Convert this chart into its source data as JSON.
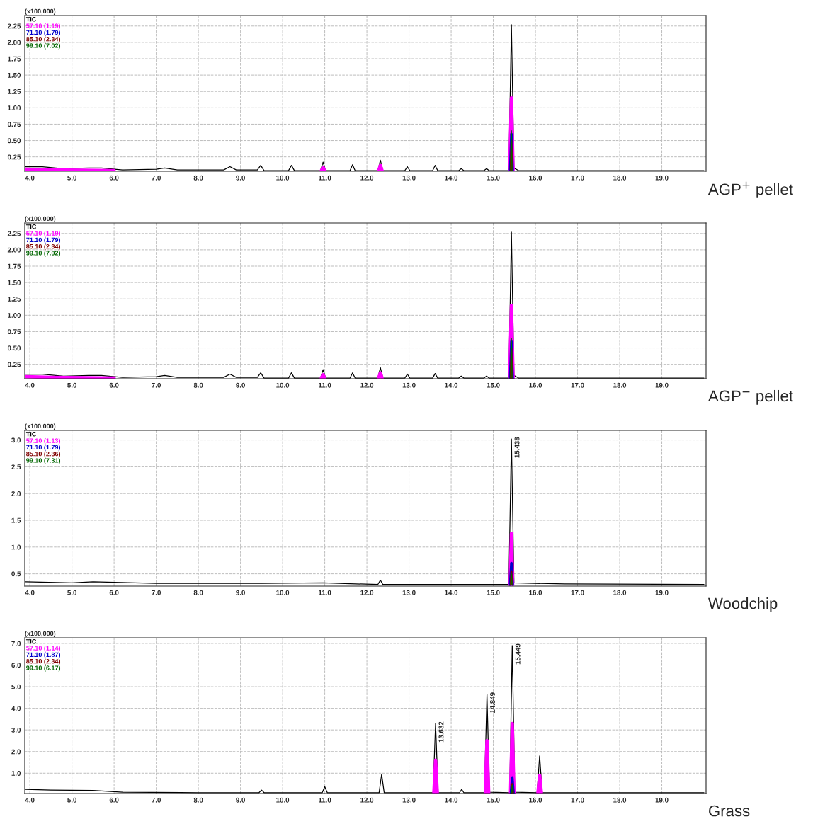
{
  "chart_data": [
    {
      "type": "line",
      "title": "AGP$^{+}$ pellet",
      "ylabel": "(x100,000)",
      "grid": true,
      "legend": "top left",
      "marker": "none",
      "line_style": "solid",
      "xlim": [
        3.88,
        20.05
      ],
      "xticks": [
        {
          "value": 4,
          "label": "4.0"
        },
        {
          "value": 5,
          "label": "5.0"
        },
        {
          "value": 6,
          "label": "6.0"
        },
        {
          "value": 7,
          "label": "7.0"
        },
        {
          "value": 8,
          "label": "8.0"
        },
        {
          "value": 9,
          "label": "9.0"
        },
        {
          "value": 10,
          "label": "10.0"
        },
        {
          "value": 11,
          "label": "11.0"
        },
        {
          "value": 12,
          "label": "12.0"
        },
        {
          "value": 13,
          "label": "13.0"
        },
        {
          "value": 14,
          "label": "14.0"
        },
        {
          "value": 15,
          "label": "15.0"
        },
        {
          "value": 16,
          "label": "16.0"
        },
        {
          "value": 17,
          "label": "17.0"
        },
        {
          "value": 18,
          "label": "18.0"
        },
        {
          "value": 19,
          "label": "19.0"
        }
      ],
      "ylim": [
        0.03,
        2.41
      ],
      "yticks": [
        0.25,
        {
          "value": 0.5,
          "label": "0.50"
        },
        0.75,
        {
          "value": 1.0,
          "label": "1.00"
        },
        1.25,
        {
          "value": 1.5,
          "label": "1.50"
        },
        1.75,
        {
          "value": 2.0,
          "label": "2.00"
        },
        2.25
      ],
      "series": [
        {
          "name": "TIC",
          "color": "#000000",
          "x": [
            3.9,
            4.3,
            4.8,
            5.4,
            5.7,
            6.2,
            7.0,
            7.2,
            7.5,
            8.6,
            8.75,
            8.9,
            9.4,
            9.48,
            9.56,
            10.14,
            10.21,
            10.28,
            10.9,
            10.96,
            11.02,
            11.6,
            11.66,
            11.72,
            12.26,
            12.32,
            12.38,
            12.9,
            12.96,
            13.02,
            13.56,
            13.62,
            13.68,
            14.18,
            14.24,
            14.3,
            14.78,
            14.84,
            14.9,
            15.37,
            15.43,
            15.49,
            15.6,
            17.0,
            20.0
          ],
          "values": [
            0.1,
            0.1,
            0.07,
            0.08,
            0.08,
            0.05,
            0.06,
            0.08,
            0.05,
            0.05,
            0.1,
            0.05,
            0.05,
            0.12,
            0.04,
            0.04,
            0.12,
            0.04,
            0.04,
            0.17,
            0.04,
            0.04,
            0.13,
            0.04,
            0.04,
            0.2,
            0.04,
            0.04,
            0.1,
            0.04,
            0.04,
            0.12,
            0.04,
            0.04,
            0.07,
            0.04,
            0.04,
            0.07,
            0.04,
            0.04,
            2.27,
            0.08,
            0.04,
            0.04,
            0.04
          ]
        },
        {
          "name": "57.10 (1.19)",
          "color": "#ff00ff",
          "x": [
            3.9,
            4.5,
            6.0,
            6.5,
            10.92,
            10.96,
            11.0,
            11.5,
            12.28,
            12.32,
            12.36,
            13.0,
            15.39,
            15.43,
            15.47
          ],
          "values": [
            0.06,
            0.05,
            0.04,
            null,
            0.04,
            0.09,
            0.04,
            null,
            0.04,
            0.12,
            0.04,
            null,
            0.04,
            1.15,
            0.04
          ]
        },
        {
          "name": "71.10 (1.79)",
          "color": "#0000cc",
          "x": [
            15.4,
            15.43,
            15.46
          ],
          "values": [
            0.04,
            0.6,
            0.04
          ]
        },
        {
          "name": "85.10 (2.34)",
          "color": "#800000",
          "x": [
            15.41,
            15.43,
            15.45
          ],
          "values": [
            0.04,
            0.5,
            0.04
          ]
        },
        {
          "name": "99.10 (7.02)",
          "color": "#006600",
          "x": [
            15.415,
            15.43,
            15.445
          ],
          "values": [
            0.04,
            0.65,
            0.04
          ]
        }
      ]
    },
    {
      "type": "line",
      "title": "AGP$^{−}$ pellet",
      "ylabel": "(x100,000)",
      "grid": true,
      "legend": "top left",
      "marker": "none",
      "line_style": "solid",
      "xlim": [
        3.88,
        20.05
      ],
      "xticks": [
        {
          "value": 4,
          "label": "4.0"
        },
        {
          "value": 5,
          "label": "5.0"
        },
        {
          "value": 6,
          "label": "6.0"
        },
        {
          "value": 7,
          "label": "7.0"
        },
        {
          "value": 8,
          "label": "8.0"
        },
        {
          "value": 9,
          "label": "9.0"
        },
        {
          "value": 10,
          "label": "10.0"
        },
        {
          "value": 11,
          "label": "11.0"
        },
        {
          "value": 12,
          "label": "12.0"
        },
        {
          "value": 13,
          "label": "13.0"
        },
        {
          "value": 14,
          "label": "14.0"
        },
        {
          "value": 15,
          "label": "15.0"
        },
        {
          "value": 16,
          "label": "16.0"
        },
        {
          "value": 17,
          "label": "17.0"
        },
        {
          "value": 18,
          "label": "18.0"
        },
        {
          "value": 19,
          "label": "19.0"
        }
      ],
      "ylim": [
        0.03,
        2.41
      ],
      "yticks": [
        0.25,
        {
          "value": 0.5,
          "label": "0.50"
        },
        0.75,
        {
          "value": 1.0,
          "label": "1.00"
        },
        1.25,
        {
          "value": 1.5,
          "label": "1.50"
        },
        1.75,
        {
          "value": 2.0,
          "label": "2.00"
        },
        2.25
      ],
      "series": [
        {
          "name": "TIC",
          "color": "#000000",
          "x": [
            3.9,
            4.3,
            4.8,
            5.4,
            5.7,
            6.2,
            7.0,
            7.2,
            7.5,
            8.6,
            8.75,
            8.9,
            9.4,
            9.48,
            9.56,
            10.14,
            10.21,
            10.28,
            10.9,
            10.96,
            11.02,
            11.6,
            11.66,
            11.72,
            12.26,
            12.32,
            12.38,
            12.9,
            12.96,
            13.02,
            13.56,
            13.62,
            13.68,
            14.18,
            14.24,
            14.3,
            14.78,
            14.84,
            14.9,
            15.37,
            15.43,
            15.49,
            15.6,
            17.0,
            20.0
          ],
          "values": [
            0.1,
            0.1,
            0.07,
            0.08,
            0.08,
            0.05,
            0.06,
            0.08,
            0.05,
            0.05,
            0.1,
            0.05,
            0.05,
            0.12,
            0.04,
            0.04,
            0.12,
            0.04,
            0.04,
            0.17,
            0.04,
            0.04,
            0.12,
            0.04,
            0.04,
            0.2,
            0.04,
            0.04,
            0.1,
            0.04,
            0.04,
            0.11,
            0.04,
            0.04,
            0.07,
            0.04,
            0.04,
            0.07,
            0.04,
            0.04,
            2.27,
            0.08,
            0.04,
            0.04,
            0.04
          ]
        },
        {
          "name": "57.10 (1.19)",
          "color": "#ff00ff",
          "x": [
            3.9,
            4.5,
            6.0,
            6.5,
            10.92,
            10.96,
            11.0,
            11.5,
            12.28,
            12.32,
            12.36,
            13.0,
            15.39,
            15.43,
            15.47
          ],
          "values": [
            0.06,
            0.05,
            0.04,
            null,
            0.04,
            0.09,
            0.04,
            null,
            0.04,
            0.12,
            0.04,
            null,
            0.04,
            1.15,
            0.04
          ]
        },
        {
          "name": "71.10 (1.79)",
          "color": "#0000cc",
          "x": [
            15.4,
            15.43,
            15.46
          ],
          "values": [
            0.04,
            0.6,
            0.04
          ]
        },
        {
          "name": "85.10 (2.34)",
          "color": "#800000",
          "x": [
            15.41,
            15.43,
            15.45
          ],
          "values": [
            0.04,
            0.5,
            0.04
          ]
        },
        {
          "name": "99.10 (7.02)",
          "color": "#006600",
          "x": [
            15.415,
            15.43,
            15.445
          ],
          "values": [
            0.04,
            0.65,
            0.04
          ]
        }
      ]
    },
    {
      "type": "line",
      "title": "Woodchip",
      "ylabel": "(x100,000)",
      "grid": true,
      "legend": "top left",
      "marker": "none",
      "line_style": "solid",
      "xlim": [
        3.88,
        20.05
      ],
      "xticks": [
        {
          "value": 4,
          "label": "4.0"
        },
        {
          "value": 5,
          "label": "5.0"
        },
        {
          "value": 6,
          "label": "6.0"
        },
        {
          "value": 7,
          "label": "7.0"
        },
        {
          "value": 8,
          "label": "8.0"
        },
        {
          "value": 9,
          "label": "9.0"
        },
        {
          "value": 10,
          "label": "10.0"
        },
        {
          "value": 11,
          "label": "11.0"
        },
        {
          "value": 12,
          "label": "12.0"
        },
        {
          "value": 13,
          "label": "13.0"
        },
        {
          "value": 14,
          "label": "14.0"
        },
        {
          "value": 15,
          "label": "15.0"
        },
        {
          "value": 16,
          "label": "16.0"
        },
        {
          "value": 17,
          "label": "17.0"
        },
        {
          "value": 18,
          "label": "18.0"
        },
        {
          "value": 19,
          "label": "19.0"
        }
      ],
      "ylim": [
        0.27,
        3.18
      ],
      "yticks": [
        0.5,
        {
          "value": 1.0,
          "label": "1.0"
        },
        1.5,
        {
          "value": 2.0,
          "label": "2.0"
        },
        2.5,
        {
          "value": 3.0,
          "label": "3.0"
        }
      ],
      "annotations": [
        {
          "text": "15.438",
          "x": 15.43,
          "y": 3.02
        }
      ],
      "series": [
        {
          "name": "TIC",
          "color": "#000000",
          "x": [
            3.9,
            5.0,
            5.5,
            7.0,
            9.5,
            10.96,
            12.26,
            12.32,
            12.38,
            15.37,
            15.43,
            15.49,
            16.7,
            20.0
          ],
          "values": [
            0.35,
            0.33,
            0.35,
            0.32,
            0.32,
            0.33,
            0.3,
            0.38,
            0.3,
            0.3,
            3.02,
            0.33,
            0.31,
            0.3
          ]
        },
        {
          "name": "57.10 (1.13)",
          "color": "#ff00ff",
          "x": [
            15.4,
            15.43,
            15.46
          ],
          "values": [
            0.3,
            1.25,
            0.3
          ]
        },
        {
          "name": "71.10 (1.79)",
          "color": "#0000cc",
          "x": [
            15.4,
            15.43,
            15.46
          ],
          "values": [
            0.3,
            0.7,
            0.3
          ]
        },
        {
          "name": "85.10 (2.36)",
          "color": "#800000",
          "x": [
            15.41,
            15.43,
            15.45
          ],
          "values": [
            0.3,
            0.55,
            0.3
          ]
        },
        {
          "name": "99.10 (7.31)",
          "color": "#006600",
          "x": [
            15.415,
            15.43,
            15.445
          ],
          "values": [
            0.3,
            0.5,
            0.3
          ]
        }
      ]
    },
    {
      "type": "line",
      "title": "Grass",
      "ylabel": "(x100,000)",
      "grid": true,
      "legend": "top left",
      "marker": "none",
      "line_style": "solid",
      "xlim": [
        3.88,
        20.05
      ],
      "xticks": [
        {
          "value": 4,
          "label": "4.0"
        },
        {
          "value": 5,
          "label": "5.0"
        },
        {
          "value": 6,
          "label": "6.0"
        },
        {
          "value": 7,
          "label": "7.0"
        },
        {
          "value": 8,
          "label": "8.0"
        },
        {
          "value": 9,
          "label": "9.0"
        },
        {
          "value": 10,
          "label": "10.0"
        },
        {
          "value": 11,
          "label": "11.0"
        },
        {
          "value": 12,
          "label": "12.0"
        },
        {
          "value": 13,
          "label": "13.0"
        },
        {
          "value": 14,
          "label": "14.0"
        },
        {
          "value": 15,
          "label": "15.0"
        },
        {
          "value": 16,
          "label": "16.0"
        },
        {
          "value": 17,
          "label": "17.0"
        },
        {
          "value": 18,
          "label": "18.0"
        },
        {
          "value": 19,
          "label": "19.0"
        }
      ],
      "ylim": [
        0.06,
        7.26
      ],
      "yticks": [
        {
          "value": 1.0,
          "label": "1.0"
        },
        {
          "value": 2.0,
          "label": "2.0"
        },
        {
          "value": 3.0,
          "label": "3.0"
        },
        {
          "value": 4.0,
          "label": "4.0"
        },
        {
          "value": 5.0,
          "label": "5.0"
        },
        {
          "value": 6.0,
          "label": "6.0"
        },
        {
          "value": 7.0,
          "label": "7.0"
        }
      ],
      "annotations": [
        {
          "text": "13.632",
          "x": 13.63,
          "y": 3.3
        },
        {
          "text": "14.849",
          "x": 14.85,
          "y": 4.65
        },
        {
          "text": "15.449",
          "x": 15.45,
          "y": 6.9
        }
      ],
      "series": [
        {
          "name": "TIC",
          "color": "#000000",
          "x": [
            3.9,
            4.5,
            5.5,
            6.2,
            8.0,
            9.44,
            9.5,
            9.56,
            10.94,
            11.0,
            11.06,
            12.29,
            12.35,
            12.41,
            13.57,
            13.63,
            13.69,
            14.2,
            14.25,
            14.3,
            14.79,
            14.85,
            14.91,
            15.39,
            15.45,
            15.51,
            16.04,
            16.1,
            16.16,
            16.8,
            20.0
          ],
          "values": [
            0.25,
            0.22,
            0.2,
            0.12,
            0.1,
            0.1,
            0.22,
            0.1,
            0.1,
            0.38,
            0.1,
            0.1,
            0.95,
            0.1,
            0.1,
            3.3,
            0.1,
            0.1,
            0.25,
            0.1,
            0.1,
            4.65,
            0.12,
            0.1,
            6.9,
            0.12,
            0.1,
            1.8,
            0.1,
            0.1,
            0.1
          ]
        },
        {
          "name": "57.10 (1.14)",
          "color": "#ff00ff",
          "x": [
            13.59,
            13.63,
            13.67,
            14.2,
            14.81,
            14.85,
            14.89,
            15.2,
            15.41,
            15.45,
            15.49,
            15.8,
            16.06,
            16.1,
            16.14
          ],
          "values": [
            0.1,
            1.6,
            0.1,
            null,
            0.1,
            2.5,
            0.1,
            null,
            0.1,
            3.3,
            0.1,
            null,
            0.1,
            0.9,
            0.1
          ]
        },
        {
          "name": "71.10 (1.87)",
          "color": "#0000cc",
          "x": [
            15.42,
            15.45,
            15.48
          ],
          "values": [
            0.1,
            0.8,
            0.1
          ]
        },
        {
          "name": "85.10 (2.34)",
          "color": "#800000",
          "x": [
            15.43,
            15.45,
            15.47
          ],
          "values": [
            0.1,
            0.5,
            0.1
          ]
        },
        {
          "name": "99.10 (6.17)",
          "color": "#006600",
          "x": [
            15.435,
            15.45,
            15.465
          ],
          "values": [
            0.1,
            0.45,
            0.1
          ]
        }
      ]
    }
  ]
}
